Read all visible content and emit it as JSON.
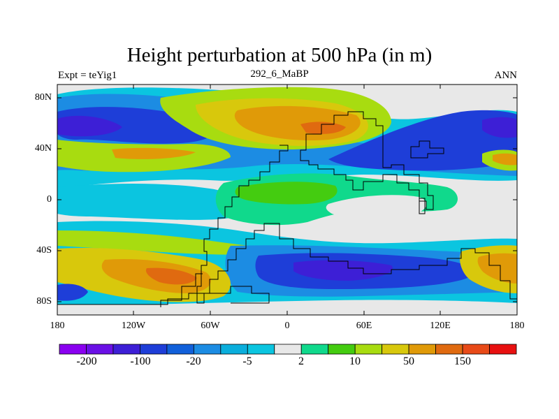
{
  "title": "Height perturbation at 500 hPa (in m)",
  "subtitle_left": "Expt = teYig1",
  "subtitle_center": "292_6_MaBP",
  "subtitle_right": "ANN",
  "axes": {
    "lat_labels": [
      "80N",
      "40N",
      "0",
      "40S",
      "80S"
    ],
    "lon_labels": [
      "180",
      "120W",
      "60W",
      "0",
      "60E",
      "120E",
      "180"
    ]
  },
  "colorbar": {
    "labels": [
      "-200",
      "-100",
      "-20",
      "-5",
      "2",
      "10",
      "50",
      "150"
    ],
    "colors": [
      "#8a00f0",
      "#6a10e6",
      "#3d1fd6",
      "#1e3ed8",
      "#1160da",
      "#1c8ce3",
      "#0aaedc",
      "#0bc5e0",
      "#e8e8e8",
      "#10d98c",
      "#44cc10",
      "#a8dc10",
      "#d8c80c",
      "#e09a08",
      "#e06a10",
      "#e84a18",
      "#e81010"
    ]
  },
  "map_colors": {
    "neutral": "#e8e8e8",
    "cyan": "#0bc5e0",
    "light_blue": "#1c8ce3",
    "blue": "#1160da",
    "dark_blue": "#1e3ed8",
    "deep_blue": "#3d1fd6",
    "green_cyan": "#10d98c",
    "green": "#44cc10",
    "yellow_green": "#a8dc10",
    "yellow": "#d8c80c",
    "orange": "#e09a08",
    "dark_orange": "#e06a10",
    "red_orange": "#e84a18",
    "coast": "#000000"
  }
}
